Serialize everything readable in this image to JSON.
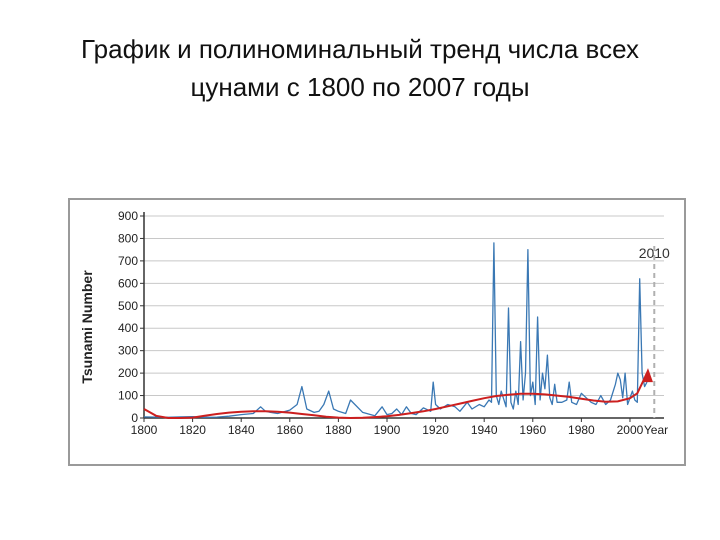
{
  "slide": {
    "title_line1": "График и полиноминальный тренд числа всех",
    "title_line2": "цунами с 1800 по 2007 годы"
  },
  "chart_data": {
    "type": "line",
    "ylabel": "Tsunami Number",
    "xlabel": "Year",
    "xlim": [
      1800,
      2014
    ],
    "ylim": [
      0,
      900
    ],
    "x_ticks": [
      1800,
      1820,
      1840,
      1860,
      1880,
      1900,
      1920,
      1940,
      1960,
      1980,
      2000
    ],
    "y_ticks": [
      0,
      100,
      200,
      300,
      400,
      500,
      600,
      700,
      800,
      900
    ],
    "grid": "horizontal",
    "annotation": {
      "label": "2010",
      "x": 2010
    },
    "colors": {
      "series": "#3a78b4",
      "trend": "#cc1f1f",
      "grid": "#c8c8c8",
      "marker": "#b0b0b0"
    },
    "series": [
      {
        "x": [
          1800,
          1805,
          1810,
          1815,
          1820,
          1825,
          1830,
          1835,
          1840,
          1845,
          1848,
          1850,
          1852,
          1855,
          1860,
          1863,
          1865,
          1867,
          1870,
          1872,
          1874,
          1876,
          1878,
          1880,
          1883,
          1885,
          1890,
          1895,
          1898,
          1900,
          1902,
          1904,
          1906,
          1908,
          1910,
          1912,
          1915,
          1918,
          1919,
          1920,
          1922,
          1925,
          1928,
          1930,
          1933,
          1935,
          1938,
          1940,
          1942,
          1943,
          1944,
          1945,
          1946,
          1947,
          1949,
          1950,
          1951,
          1952,
          1953,
          1954,
          1955,
          1956,
          1957,
          1958,
          1959,
          1960,
          1961,
          1962,
          1963,
          1964,
          1965,
          1966,
          1967,
          1968,
          1969,
          1970,
          1972,
          1974,
          1975,
          1976,
          1978,
          1980,
          1982,
          1984,
          1986,
          1988,
          1990,
          1992,
          1994,
          1995,
          1996,
          1997,
          1998,
          1999,
          2000,
          2001,
          2002,
          2003,
          2004,
          2005,
          2006,
          2007
        ],
        "y": [
          5,
          4,
          3,
          5,
          6,
          3,
          4,
          8,
          15,
          20,
          50,
          30,
          25,
          20,
          35,
          60,
          140,
          40,
          25,
          30,
          60,
          120,
          40,
          30,
          20,
          80,
          25,
          10,
          50,
          15,
          20,
          40,
          15,
          50,
          20,
          15,
          45,
          30,
          160,
          60,
          40,
          60,
          50,
          30,
          70,
          40,
          60,
          50,
          80,
          70,
          780,
          100,
          60,
          120,
          50,
          490,
          70,
          40,
          120,
          60,
          340,
          80,
          200,
          750,
          100,
          160,
          60,
          450,
          80,
          200,
          130,
          280,
          90,
          60,
          150,
          70,
          70,
          80,
          160,
          70,
          60,
          110,
          90,
          70,
          60,
          100,
          60,
          80,
          150,
          200,
          170,
          90,
          200,
          60,
          90,
          120,
          80,
          70,
          620,
          200,
          140,
          160
        ]
      },
      {
        "name": "trend",
        "x": [
          1800,
          1805,
          1810,
          1815,
          1820,
          1825,
          1830,
          1835,
          1840,
          1845,
          1850,
          1855,
          1860,
          1865,
          1870,
          1875,
          1880,
          1885,
          1890,
          1895,
          1900,
          1905,
          1910,
          1915,
          1920,
          1925,
          1930,
          1935,
          1940,
          1945,
          1950,
          1955,
          1960,
          1965,
          1970,
          1975,
          1980,
          1985,
          1990,
          1995,
          2000,
          2003,
          2007
        ],
        "y": [
          40,
          10,
          0,
          -5,
          2,
          10,
          18,
          24,
          28,
          30,
          30,
          28,
          24,
          18,
          12,
          6,
          2,
          0,
          1,
          4,
          8,
          14,
          22,
          30,
          40,
          52,
          64,
          76,
          88,
          98,
          104,
          108,
          108,
          105,
          100,
          94,
          86,
          78,
          72,
          74,
          88,
          110,
          200
        ]
      }
    ]
  }
}
